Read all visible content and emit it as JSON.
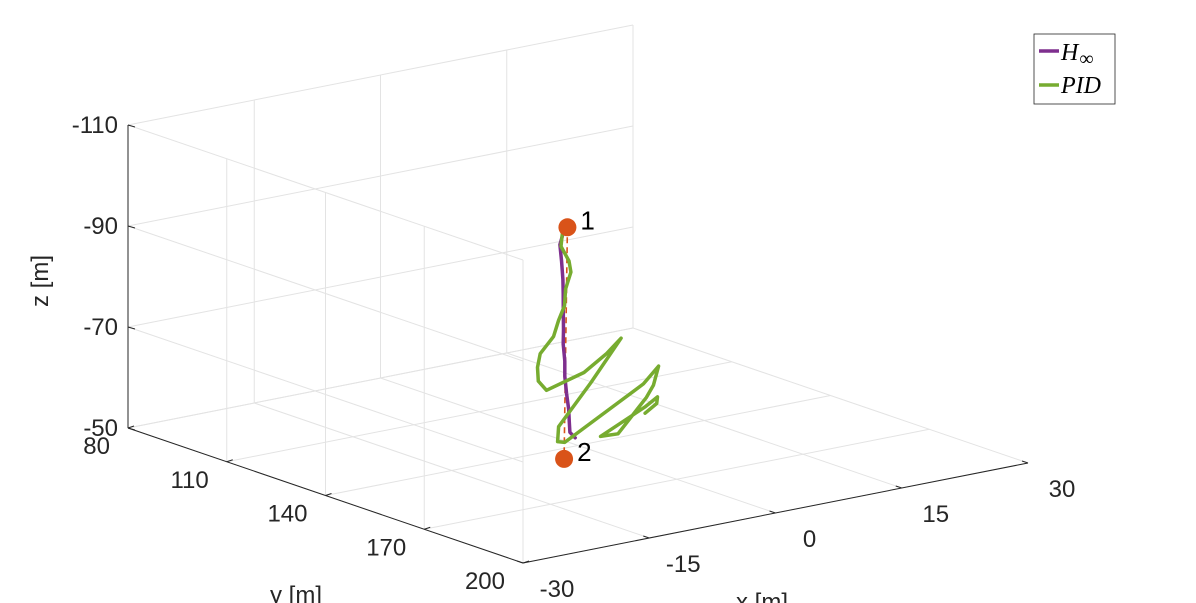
{
  "chart_data": {
    "type": "line3d",
    "axes": {
      "x": {
        "label": "x [m]",
        "ticks": [
          "-30",
          "-15",
          "0",
          "15",
          "30"
        ],
        "range": [
          -30,
          30
        ]
      },
      "y": {
        "label": "y [m]",
        "ticks": [
          "80",
          "110",
          "140",
          "170",
          "200"
        ],
        "range": [
          80,
          200
        ]
      },
      "z": {
        "label": "z [m]",
        "ticks": [
          "-110",
          "-90",
          "-70",
          "-50"
        ],
        "range": [
          -110,
          -50
        ],
        "direction": "reversed"
      }
    },
    "grid": true,
    "legend": {
      "position": "top-right",
      "entries": [
        {
          "name": "H",
          "subscript": "∞",
          "color": "#7E2F8E"
        },
        {
          "name": "PID",
          "color": "#77AC30"
        }
      ]
    },
    "points": [
      {
        "label": "1",
        "color": "#D95319",
        "x": 5,
        "y": 124,
        "z": -88
      },
      {
        "label": "2",
        "color": "#D95319",
        "x": -4,
        "y": 146,
        "z": -50
      }
    ],
    "reference_line": {
      "style": "dashed",
      "color": "#D95319",
      "from": "1",
      "to": "2"
    },
    "series": [
      {
        "name": "H∞",
        "color": "#7E2F8E",
        "x": [
          3.5,
          3.8,
          3.4,
          2.9,
          2.2,
          1.6,
          0.8,
          0.0,
          -0.7,
          -1.3,
          -2.0,
          -2.6,
          -3.1,
          -3.5,
          -3.7,
          -3.3
        ],
        "y": [
          126.3,
          125.7,
          125.8,
          127.6,
          129.8,
          131.4,
          133.5,
          135.6,
          137.3,
          139.3,
          141.1,
          143.2,
          145.1,
          146.3,
          147.0,
          147.6
        ],
        "z": [
          -88.6,
          -87.4,
          -85.5,
          -82.7,
          -79.9,
          -77.6,
          -74.7,
          -72.0,
          -69.7,
          -67.0,
          -64.6,
          -61.8,
          -59.3,
          -57.2,
          -55.4,
          -54.3
        ]
      },
      {
        "name": "PID",
        "color": "#77AC30",
        "x": [
          4.0,
          3.7,
          3.3,
          3.7,
          3.5,
          2.4,
          1.6,
          0.2,
          -1.0,
          -3.2,
          -4.3,
          -4.6,
          -3.9,
          3.3,
          8.3,
          11.3,
          3.5,
          -4.1,
          -5.0,
          -4.2,
          9.8,
          13.1,
          10.8,
          7.5,
          0.8,
          -1.2,
          9.7,
          13.0,
          10.6,
          5.7
        ],
        "y": [
          125.0,
          125.8,
          126.4,
          127.8,
          128.9,
          130.1,
          131.8,
          133.6,
          135.1,
          136.7,
          138.7,
          139.7,
          140.4,
          133.4,
          127.5,
          124.2,
          135.0,
          144.6,
          146.6,
          146.7,
          134.8,
          131.0,
          135.3,
          141.6,
          150.1,
          149.9,
          135.5,
          130.9,
          136.8,
          145.8
        ],
        "z": [
          -88.6,
          -87.7,
          -85.3,
          -82.6,
          -80.7,
          -78.0,
          -75.3,
          -73.3,
          -70.8,
          -68.5,
          -66.6,
          -64.2,
          -62.3,
          -61.9,
          -62.7,
          -64.0,
          -60.2,
          -56.1,
          -53.9,
          -53.5,
          -57.8,
          -59.4,
          -57.3,
          -57.4,
          -54.3,
          -54.4,
          -53.4,
          -53.3,
          -54.1,
          -55.8
        ]
      }
    ]
  }
}
